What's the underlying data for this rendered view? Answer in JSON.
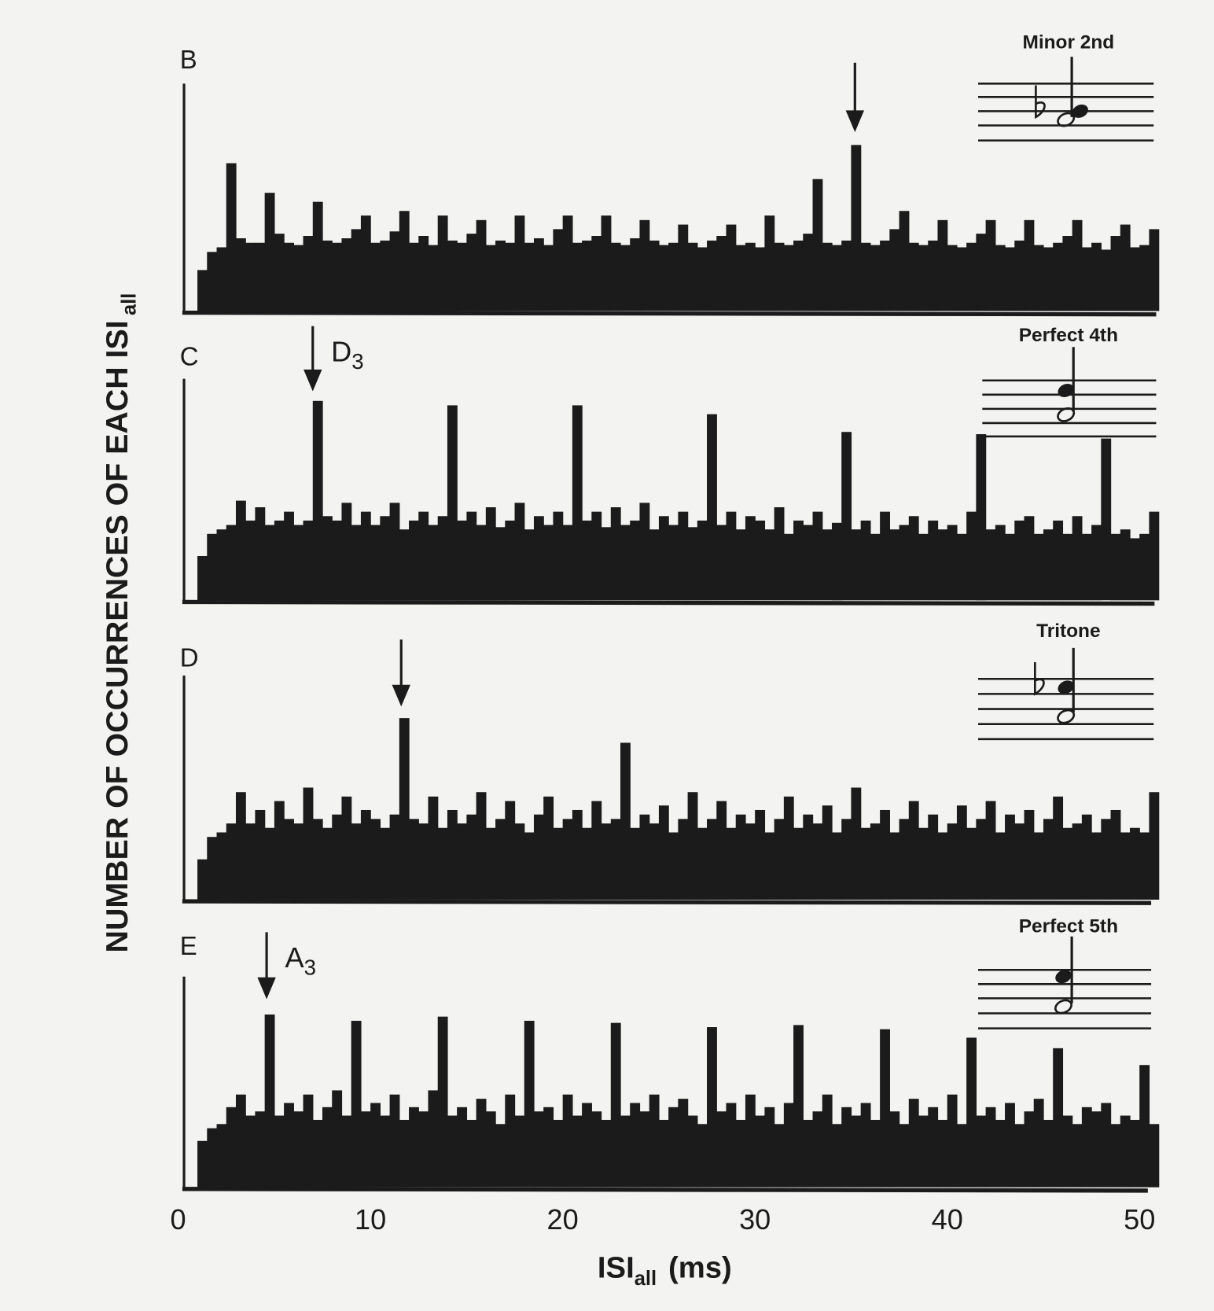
{
  "figure": {
    "y_label": "NUMBER OF OCCURRENCES OF EACH ISI",
    "y_label_sub": "all",
    "x_label": "ISI",
    "x_label_sub": "all",
    "x_label_unit": "(ms)",
    "x_ticks": [
      "0",
      "10",
      "20",
      "30",
      "40",
      "50"
    ],
    "ink_color": "#1b1b1b",
    "paper_color": "#f3f3f1"
  },
  "chart_data": [
    {
      "type": "bar",
      "panel": "B",
      "title": "Minor 2nd",
      "arrow_at": 35.2,
      "arrow_label": "",
      "arrow_label_sub": "",
      "xlabel": "ISIall (ms)",
      "ylabel": "NUMBER OF OCCURRENCES OF EACH ISIall",
      "xlim": [
        0,
        51
      ],
      "x_ticks": [
        0,
        10,
        20,
        30,
        40,
        50
      ],
      "ylim": [
        0,
        100
      ],
      "grid": false,
      "x": [
        0,
        0.5,
        1,
        1.5,
        2,
        2.5,
        3,
        3.5,
        4,
        4.5,
        5,
        5.5,
        6,
        6.5,
        7,
        7.5,
        8,
        8.5,
        9,
        9.5,
        10,
        10.5,
        11,
        11.5,
        12,
        12.5,
        13,
        13.5,
        14,
        14.5,
        15,
        15.5,
        16,
        16.5,
        17,
        17.5,
        18,
        18.5,
        19,
        19.5,
        20,
        20.5,
        21,
        21.5,
        22,
        22.5,
        23,
        23.5,
        24,
        24.5,
        25,
        25.5,
        26,
        26.5,
        27,
        27.5,
        28,
        28.5,
        29,
        29.5,
        30,
        30.5,
        31,
        31.5,
        32,
        32.5,
        33,
        33.5,
        34,
        34.5,
        35,
        35.5,
        36,
        36.5,
        37,
        37.5,
        38,
        38.5,
        39,
        39.5,
        40,
        40.5,
        41,
        41.5,
        42,
        42.5,
        43,
        43.5,
        44,
        44.5,
        45,
        45.5,
        46,
        46.5,
        47,
        47.5,
        48,
        48.5,
        49,
        49.5,
        50,
        50.5
      ],
      "values": [
        0,
        0,
        18,
        26,
        28,
        65,
        32,
        30,
        30,
        52,
        34,
        30,
        29,
        33,
        48,
        31,
        30,
        32,
        36,
        42,
        30,
        31,
        35,
        44,
        30,
        33,
        29,
        42,
        31,
        30,
        34,
        40,
        29,
        31,
        30,
        42,
        30,
        32,
        29,
        36,
        42,
        30,
        31,
        33,
        42,
        30,
        29,
        32,
        40,
        31,
        29,
        30,
        38,
        30,
        28,
        31,
        33,
        38,
        29,
        30,
        28,
        42,
        30,
        29,
        31,
        34,
        58,
        30,
        29,
        31,
        73,
        30,
        29,
        31,
        36,
        44,
        30,
        29,
        31,
        40,
        29,
        28,
        30,
        34,
        40,
        29,
        28,
        31,
        40,
        29,
        28,
        30,
        33,
        40,
        28,
        30,
        27,
        33,
        38,
        28,
        29,
        36
      ]
    },
    {
      "type": "bar",
      "panel": "C",
      "title": "Perfect 4th",
      "arrow_at": 7.0,
      "arrow_label": "D",
      "arrow_label_sub": "3",
      "xlabel": "ISIall (ms)",
      "ylabel": "NUMBER OF OCCURRENCES OF EACH ISIall",
      "xlim": [
        0,
        51
      ],
      "x_ticks": [
        0,
        10,
        20,
        30,
        40,
        50
      ],
      "ylim": [
        0,
        100
      ],
      "grid": false,
      "x": [
        0,
        0.5,
        1,
        1.5,
        2,
        2.5,
        3,
        3.5,
        4,
        4.5,
        5,
        5.5,
        6,
        6.5,
        7,
        7.5,
        8,
        8.5,
        9,
        9.5,
        10,
        10.5,
        11,
        11.5,
        12,
        12.5,
        13,
        13.5,
        14,
        14.5,
        15,
        15.5,
        16,
        16.5,
        17,
        17.5,
        18,
        18.5,
        19,
        19.5,
        20,
        20.5,
        21,
        21.5,
        22,
        22.5,
        23,
        23.5,
        24,
        24.5,
        25,
        25.5,
        26,
        26.5,
        27,
        27.5,
        28,
        28.5,
        29,
        29.5,
        30,
        30.5,
        31,
        31.5,
        32,
        32.5,
        33,
        33.5,
        34,
        34.5,
        35,
        35.5,
        36,
        36.5,
        37,
        37.5,
        38,
        38.5,
        39,
        39.5,
        40,
        40.5,
        41,
        41.5,
        42,
        42.5,
        43,
        43.5,
        44,
        44.5,
        45,
        45.5,
        46,
        46.5,
        47,
        47.5,
        48,
        48.5,
        49,
        49.5,
        50,
        50.5
      ],
      "values": [
        0,
        0,
        20,
        30,
        32,
        34,
        45,
        36,
        42,
        34,
        36,
        40,
        34,
        36,
        90,
        38,
        36,
        44,
        34,
        40,
        34,
        38,
        44,
        32,
        36,
        40,
        34,
        38,
        88,
        36,
        40,
        34,
        42,
        33,
        36,
        44,
        32,
        38,
        34,
        40,
        34,
        88,
        36,
        40,
        33,
        42,
        34,
        36,
        44,
        32,
        38,
        34,
        40,
        33,
        36,
        84,
        34,
        40,
        32,
        38,
        36,
        32,
        42,
        30,
        36,
        34,
        40,
        32,
        35,
        76,
        32,
        36,
        30,
        40,
        32,
        34,
        38,
        30,
        36,
        32,
        34,
        30,
        40,
        75,
        32,
        34,
        30,
        36,
        38,
        30,
        32,
        36,
        30,
        38,
        30,
        34,
        73,
        30,
        32,
        28,
        30,
        40
      ]
    },
    {
      "type": "bar",
      "panel": "D",
      "title": "Tritone",
      "arrow_at": 11.6,
      "arrow_label": "",
      "arrow_label_sub": "",
      "xlabel": "ISIall (ms)",
      "ylabel": "NUMBER OF OCCURRENCES OF EACH ISIall",
      "xlim": [
        0,
        51
      ],
      "x_ticks": [
        0,
        10,
        20,
        30,
        40,
        50
      ],
      "ylim": [
        0,
        100
      ],
      "grid": false,
      "x": [
        0,
        0.5,
        1,
        1.5,
        2,
        2.5,
        3,
        3.5,
        4,
        4.5,
        5,
        5.5,
        6,
        6.5,
        7,
        7.5,
        8,
        8.5,
        9,
        9.5,
        10,
        10.5,
        11,
        11.5,
        12,
        12.5,
        13,
        13.5,
        14,
        14.5,
        15,
        15.5,
        16,
        16.5,
        17,
        17.5,
        18,
        18.5,
        19,
        19.5,
        20,
        20.5,
        21,
        21.5,
        22,
        22.5,
        23,
        23.5,
        24,
        24.5,
        25,
        25.5,
        26,
        26.5,
        27,
        27.5,
        28,
        28.5,
        29,
        29.5,
        30,
        30.5,
        31,
        31.5,
        32,
        32.5,
        33,
        33.5,
        34,
        34.5,
        35,
        35.5,
        36,
        36.5,
        37,
        37.5,
        38,
        38.5,
        39,
        39.5,
        40,
        40.5,
        41,
        41.5,
        42,
        42.5,
        43,
        43.5,
        44,
        44.5,
        45,
        45.5,
        46,
        46.5,
        47,
        47.5,
        48,
        48.5,
        49,
        49.5,
        50,
        50.5
      ],
      "values": [
        0,
        0,
        18,
        28,
        30,
        34,
        48,
        34,
        40,
        32,
        44,
        36,
        34,
        50,
        36,
        32,
        38,
        46,
        34,
        40,
        36,
        32,
        38,
        81,
        36,
        34,
        46,
        32,
        40,
        34,
        38,
        48,
        32,
        36,
        44,
        34,
        30,
        38,
        46,
        32,
        36,
        40,
        32,
        44,
        34,
        36,
        70,
        32,
        38,
        34,
        42,
        30,
        36,
        48,
        32,
        36,
        44,
        32,
        38,
        34,
        40,
        30,
        36,
        46,
        32,
        38,
        34,
        42,
        30,
        36,
        50,
        32,
        34,
        40,
        30,
        36,
        44,
        32,
        38,
        30,
        34,
        42,
        32,
        36,
        44,
        30,
        38,
        34,
        40,
        30,
        36,
        46,
        32,
        34,
        38,
        30,
        36,
        40,
        30,
        32,
        30,
        48
      ]
    },
    {
      "type": "bar",
      "panel": "E",
      "title": "Perfect 5th",
      "arrow_at": 4.6,
      "arrow_label": "A",
      "arrow_label_sub": "3",
      "xlabel": "ISIall (ms)",
      "ylabel": "NUMBER OF OCCURRENCES OF EACH ISIall",
      "xlim": [
        0,
        51
      ],
      "x_ticks": [
        0,
        10,
        20,
        30,
        40,
        50
      ],
      "ylim": [
        0,
        100
      ],
      "grid": false,
      "x": [
        0,
        0.5,
        1,
        1.5,
        2,
        2.5,
        3,
        3.5,
        4,
        4.5,
        5,
        5.5,
        6,
        6.5,
        7,
        7.5,
        8,
        8.5,
        9,
        9.5,
        10,
        10.5,
        11,
        11.5,
        12,
        12.5,
        13,
        13.5,
        14,
        14.5,
        15,
        15.5,
        16,
        16.5,
        17,
        17.5,
        18,
        18.5,
        19,
        19.5,
        20,
        20.5,
        21,
        21.5,
        22,
        22.5,
        23,
        23.5,
        24,
        24.5,
        25,
        25.5,
        26,
        26.5,
        27,
        27.5,
        28,
        28.5,
        29,
        29.5,
        30,
        30.5,
        31,
        31.5,
        32,
        32.5,
        33,
        33.5,
        34,
        34.5,
        35,
        35.5,
        36,
        36.5,
        37,
        37.5,
        38,
        38.5,
        39,
        39.5,
        40,
        40.5,
        41,
        41.5,
        42,
        42.5,
        43,
        43.5,
        44,
        44.5,
        45,
        45.5,
        46,
        46.5,
        47,
        47.5,
        48,
        48.5,
        49,
        49.5,
        50,
        50.5
      ],
      "values": [
        0,
        0,
        22,
        28,
        30,
        38,
        44,
        34,
        36,
        82,
        34,
        40,
        36,
        44,
        32,
        38,
        46,
        34,
        79,
        36,
        40,
        34,
        44,
        32,
        38,
        36,
        46,
        81,
        34,
        38,
        32,
        42,
        36,
        30,
        44,
        34,
        79,
        36,
        38,
        32,
        44,
        34,
        40,
        36,
        32,
        78,
        34,
        40,
        36,
        44,
        32,
        38,
        42,
        34,
        30,
        76,
        36,
        40,
        32,
        44,
        34,
        38,
        30,
        40,
        77,
        32,
        36,
        44,
        30,
        38,
        34,
        40,
        32,
        75,
        36,
        30,
        42,
        34,
        38,
        32,
        44,
        30,
        71,
        34,
        38,
        32,
        40,
        30,
        36,
        42,
        32,
        66,
        34,
        30,
        38,
        36,
        40,
        30,
        34,
        32,
        58,
        30
      ]
    }
  ]
}
